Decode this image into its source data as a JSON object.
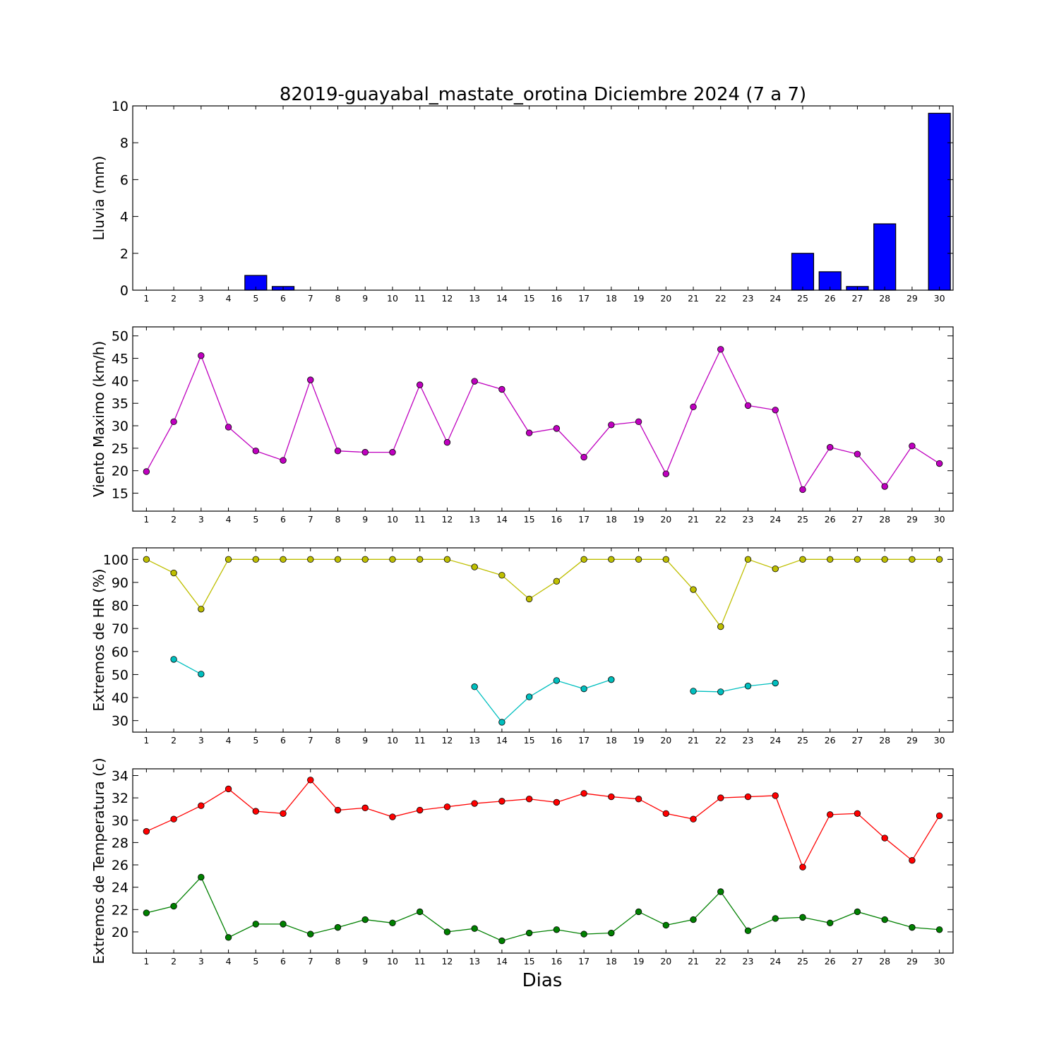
{
  "chart_data": [
    {
      "type": "bar",
      "title": "82019-guayabal_mastate_orotina Diciembre 2024  (7 a 7)",
      "ylabel": "Lluvia (mm)",
      "xlabel": "",
      "categories": [
        "1",
        "2",
        "3",
        "4",
        "5",
        "6",
        "7",
        "8",
        "9",
        "10",
        "11",
        "12",
        "13",
        "14",
        "15",
        "16",
        "17",
        "18",
        "19",
        "20",
        "21",
        "22",
        "23",
        "24",
        "25",
        "26",
        "27",
        "28",
        "29",
        "30"
      ],
      "ylim": [
        0,
        10
      ],
      "yticks": [
        0,
        2,
        4,
        6,
        8,
        10
      ],
      "series": [
        {
          "color": "#0000ff",
          "values": [
            0,
            0,
            0,
            0,
            0.8,
            0.2,
            0,
            0,
            0,
            0,
            0,
            0,
            0,
            0,
            0,
            0,
            0,
            0,
            0,
            0,
            0,
            0,
            0,
            0,
            2.0,
            1.0,
            0.2,
            3.6,
            0,
            9.6
          ]
        }
      ]
    },
    {
      "type": "line",
      "ylabel": "Viento Maximo (km/h)",
      "categories": [
        "1",
        "2",
        "3",
        "4",
        "5",
        "6",
        "7",
        "8",
        "9",
        "10",
        "11",
        "12",
        "13",
        "14",
        "15",
        "16",
        "17",
        "18",
        "19",
        "20",
        "21",
        "22",
        "23",
        "24",
        "25",
        "26",
        "27",
        "28",
        "29",
        "30"
      ],
      "ylim": [
        11,
        52
      ],
      "yticks": [
        15,
        20,
        25,
        30,
        35,
        40,
        45,
        50
      ],
      "series": [
        {
          "color": "#bf00bf",
          "values": [
            19.8,
            30.9,
            45.6,
            29.7,
            24.4,
            22.3,
            40.2,
            24.4,
            24.1,
            24.1,
            39.1,
            26.3,
            39.9,
            38.1,
            28.4,
            29.4,
            23.0,
            30.2,
            30.9,
            19.3,
            34.2,
            47.0,
            34.5,
            33.5,
            15.8,
            25.2,
            23.7,
            16.5,
            25.5,
            21.6
          ]
        }
      ]
    },
    {
      "type": "line",
      "ylabel": "Extremos de HR (%)",
      "categories": [
        "1",
        "2",
        "3",
        "4",
        "5",
        "6",
        "7",
        "8",
        "9",
        "10",
        "11",
        "12",
        "13",
        "14",
        "15",
        "16",
        "17",
        "18",
        "19",
        "20",
        "21",
        "22",
        "23",
        "24",
        "25",
        "26",
        "27",
        "28",
        "29",
        "30"
      ],
      "ylim": [
        25,
        105
      ],
      "yticks": [
        30,
        40,
        50,
        60,
        70,
        80,
        90,
        100
      ],
      "series": [
        {
          "color": "#bfbf00",
          "values": [
            100,
            94.1,
            78.4,
            100,
            100,
            100,
            100,
            100,
            100,
            100,
            100,
            100,
            96.7,
            93.1,
            82.8,
            90.5,
            100,
            100,
            100,
            100,
            86.9,
            70.8,
            100,
            95.9,
            100,
            100,
            100,
            100,
            100,
            100
          ]
        },
        {
          "color": "#00bfbf",
          "values": [
            null,
            56.6,
            50.2,
            null,
            null,
            null,
            null,
            null,
            null,
            null,
            null,
            null,
            44.7,
            29.3,
            40.3,
            47.4,
            43.8,
            47.8,
            null,
            null,
            42.8,
            42.5,
            45.0,
            46.3,
            null,
            null,
            null,
            null,
            null,
            null
          ]
        }
      ]
    },
    {
      "type": "line",
      "ylabel": "Extremos de Temperatura (c)",
      "xlabel": "Dias",
      "categories": [
        "1",
        "2",
        "3",
        "4",
        "5",
        "6",
        "7",
        "8",
        "9",
        "10",
        "11",
        "12",
        "13",
        "14",
        "15",
        "16",
        "17",
        "18",
        "19",
        "20",
        "21",
        "22",
        "23",
        "24",
        "25",
        "26",
        "27",
        "28",
        "29",
        "30"
      ],
      "ylim": [
        18.1,
        34.6
      ],
      "yticks": [
        20,
        22,
        24,
        26,
        28,
        30,
        32,
        34
      ],
      "series": [
        {
          "color": "#ff0000",
          "values": [
            29.0,
            30.1,
            31.3,
            32.8,
            30.8,
            30.6,
            33.6,
            30.9,
            31.1,
            30.3,
            30.9,
            31.2,
            31.5,
            31.7,
            31.9,
            31.6,
            32.4,
            32.1,
            31.9,
            30.6,
            30.1,
            32.0,
            32.1,
            32.2,
            25.8,
            30.5,
            30.6,
            28.4,
            26.4,
            30.4
          ]
        },
        {
          "color": "#008000",
          "values": [
            21.7,
            22.3,
            24.9,
            19.5,
            20.7,
            20.7,
            19.8,
            20.4,
            21.1,
            20.8,
            21.8,
            20.0,
            20.3,
            19.2,
            19.9,
            20.2,
            19.8,
            19.9,
            21.8,
            20.6,
            21.1,
            23.6,
            20.1,
            21.2,
            21.3,
            20.8,
            21.8,
            21.1,
            20.4,
            20.2
          ]
        }
      ]
    }
  ]
}
